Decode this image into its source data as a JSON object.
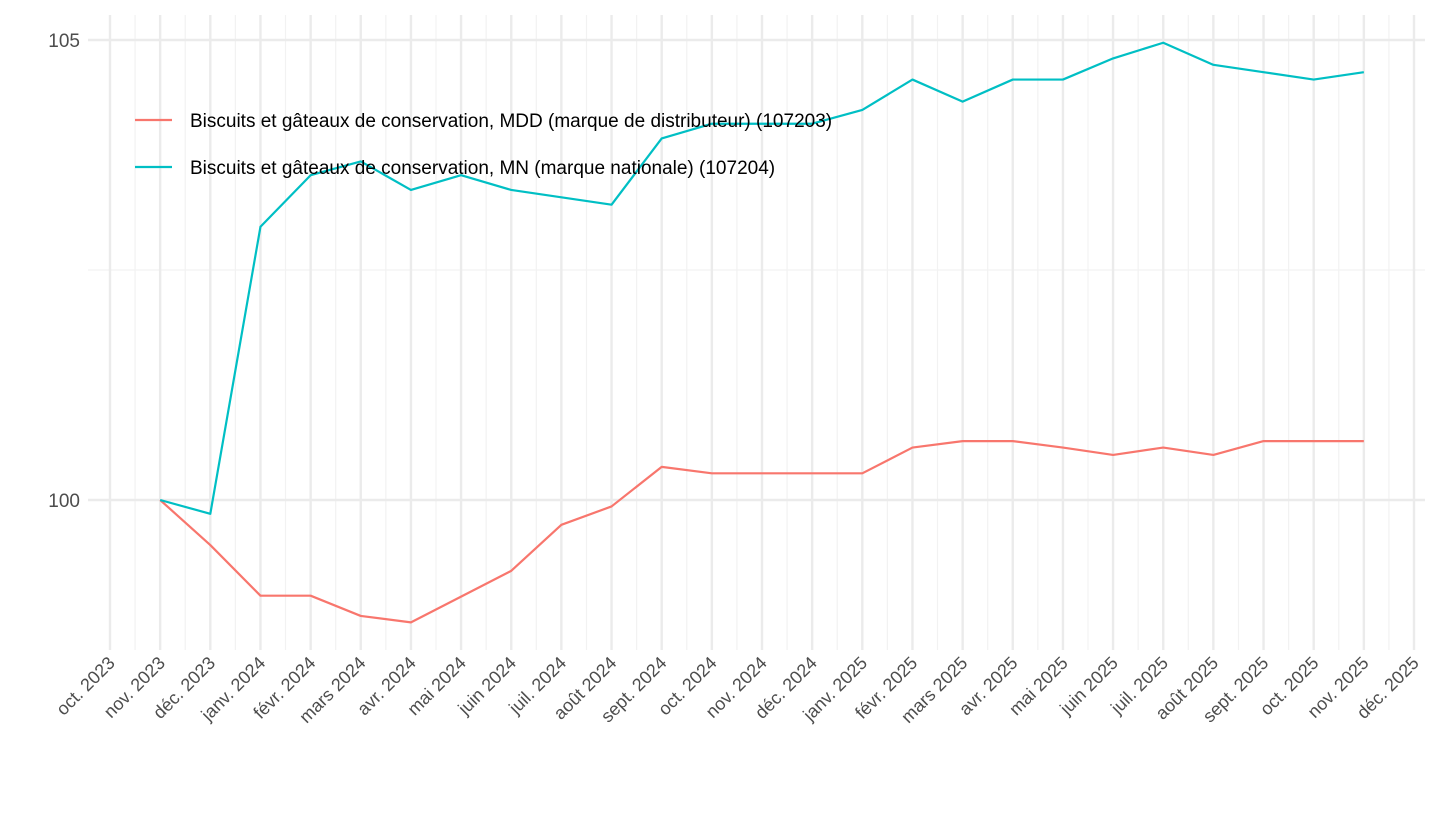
{
  "chart_data": {
    "type": "line",
    "title": "",
    "xlabel": "",
    "ylabel": "",
    "ylim": [
      98.35,
      105.27
    ],
    "y_ticks": [
      "100",
      "105"
    ],
    "y_tick_values": [
      100,
      105
    ],
    "y_minor_tick_values": [
      102.5
    ],
    "grid": true,
    "legend_position": "top-left (inside)",
    "x_tick_labels": [
      "oct. 2023",
      "nov. 2023",
      "déc. 2023",
      "janv. 2024",
      "févr. 2024",
      "mars 2024",
      "avr. 2024",
      "mai 2024",
      "juin 2024",
      "juil. 2024",
      "août 2024",
      "sept. 2024",
      "oct. 2024",
      "nov. 2024",
      "déc. 2024",
      "janv. 2025",
      "févr. 2025",
      "mars 2025",
      "avr. 2025",
      "mai 2025",
      "juin 2025",
      "juil. 2025",
      "août 2025",
      "sept. 2025",
      "oct. 2025",
      "nov. 2025",
      "déc. 2025"
    ],
    "x": [
      "nov. 2023",
      "déc. 2023",
      "janv. 2024",
      "févr. 2024",
      "mars 2024",
      "avr. 2024",
      "mai 2024",
      "juin 2024",
      "juil. 2024",
      "août 2024",
      "sept. 2024",
      "oct. 2024",
      "nov. 2024",
      "déc. 2024",
      "janv. 2025",
      "févr. 2025",
      "mars 2025",
      "avr. 2025",
      "mai 2025",
      "juin 2025",
      "juil. 2025",
      "août 2025",
      "sept. 2025",
      "oct. 2025",
      "nov. 2025"
    ],
    "series": [
      {
        "name": "Biscuits et gâteaux de conservation, MDD (marque de distributeur) (107203)",
        "color": "#F8766D",
        "values": [
          100,
          99.51,
          98.96,
          98.96,
          98.74,
          98.67,
          98.95,
          99.23,
          99.73,
          99.93,
          100.36,
          100.29,
          100.29,
          100.29,
          100.29,
          100.57,
          100.64,
          100.64,
          100.57,
          100.49,
          100.57,
          100.49,
          100.64,
          100.64,
          100.64
        ]
      },
      {
        "name": "Biscuits et gâteaux de conservation, MN (marque nationale) (107204)",
        "color": "#00BFC4",
        "values": [
          100,
          99.85,
          102.97,
          103.53,
          103.68,
          103.37,
          103.53,
          103.37,
          103.29,
          103.21,
          103.93,
          104.09,
          104.09,
          104.09,
          104.24,
          104.57,
          104.33,
          104.57,
          104.57,
          104.8,
          104.97,
          104.73,
          104.65,
          104.57,
          104.65
        ]
      }
    ]
  }
}
